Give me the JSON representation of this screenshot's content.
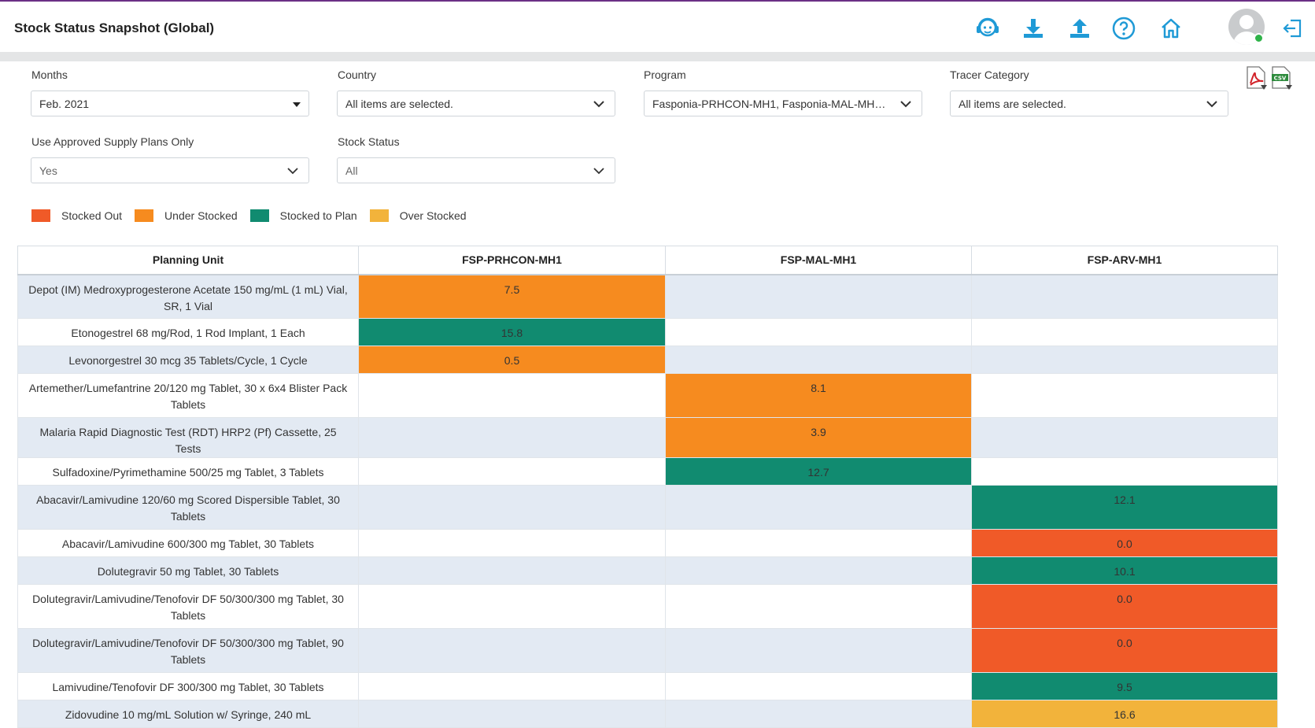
{
  "app": {
    "title": "Stock Status Snapshot (Global)"
  },
  "header_icons": [
    "support-icon",
    "download-icon",
    "upload-icon",
    "help-icon",
    "home-icon",
    "avatar",
    "logout-icon"
  ],
  "colors": {
    "stocked_out": "#f05a28",
    "under_stocked": "#f68b1f",
    "stocked_to_plan": "#118b70",
    "over_stocked": "#f2b33b",
    "header_accent": "#1f9ad6"
  },
  "filters": {
    "months": {
      "label": "Months",
      "value": "Feb. 2021"
    },
    "country": {
      "label": "Country",
      "value": "All items are selected."
    },
    "program": {
      "label": "Program",
      "value": "Fasponia-PRHCON-MH1, Fasponia-MAL-MH…"
    },
    "tracer_category": {
      "label": "Tracer Category",
      "value": "All items are selected."
    },
    "approved_only": {
      "label": "Use Approved Supply Plans Only",
      "value": "Yes"
    },
    "stock_status": {
      "label": "Stock Status",
      "value": "All"
    }
  },
  "exports": [
    "pdf-export-icon",
    "csv-export-icon"
  ],
  "legend": [
    {
      "label": "Stocked Out",
      "status": "stocked_out"
    },
    {
      "label": "Under Stocked",
      "status": "under_stocked"
    },
    {
      "label": "Stocked to Plan",
      "status": "stocked_to_plan"
    },
    {
      "label": "Over Stocked",
      "status": "over_stocked"
    }
  ],
  "table": {
    "columns": [
      "Planning Unit",
      "FSP-PRHCON-MH1",
      "FSP-MAL-MH1",
      "FSP-ARV-MH1"
    ],
    "rows": [
      {
        "name": "Depot (IM) Medroxyprogesterone Acetate 150 mg/mL (1 mL) Vial, SR, 1 Vial",
        "cells": [
          {
            "value": "7.5",
            "status": "under_stocked"
          },
          {
            "value": "",
            "status": ""
          },
          {
            "value": "",
            "status": ""
          }
        ]
      },
      {
        "name": "Etonogestrel 68 mg/Rod, 1 Rod Implant, 1 Each",
        "cells": [
          {
            "value": "15.8",
            "status": "stocked_to_plan"
          },
          {
            "value": "",
            "status": ""
          },
          {
            "value": "",
            "status": ""
          }
        ]
      },
      {
        "name": "Levonorgestrel 30 mcg 35 Tablets/Cycle, 1 Cycle",
        "cells": [
          {
            "value": "0.5",
            "status": "under_stocked"
          },
          {
            "value": "",
            "status": ""
          },
          {
            "value": "",
            "status": ""
          }
        ]
      },
      {
        "name": "Artemether/Lumefantrine 20/120 mg Tablet, 30 x 6x4 Blister Pack Tablets",
        "cells": [
          {
            "value": "",
            "status": ""
          },
          {
            "value": "8.1",
            "status": "under_stocked"
          },
          {
            "value": "",
            "status": ""
          }
        ]
      },
      {
        "name": "Malaria Rapid Diagnostic Test (RDT) HRP2 (Pf) Cassette, 25 Tests",
        "cells": [
          {
            "value": "",
            "status": ""
          },
          {
            "value": "3.9",
            "status": "under_stocked"
          },
          {
            "value": "",
            "status": ""
          }
        ]
      },
      {
        "name": "Sulfadoxine/Pyrimethamine 500/25 mg Tablet, 3 Tablets",
        "cells": [
          {
            "value": "",
            "status": ""
          },
          {
            "value": "12.7",
            "status": "stocked_to_plan"
          },
          {
            "value": "",
            "status": ""
          }
        ]
      },
      {
        "name": "Abacavir/Lamivudine 120/60 mg Scored Dispersible Tablet, 30 Tablets",
        "cells": [
          {
            "value": "",
            "status": ""
          },
          {
            "value": "",
            "status": ""
          },
          {
            "value": "12.1",
            "status": "stocked_to_plan"
          }
        ]
      },
      {
        "name": "Abacavir/Lamivudine 600/300 mg Tablet, 30 Tablets",
        "cells": [
          {
            "value": "",
            "status": ""
          },
          {
            "value": "",
            "status": ""
          },
          {
            "value": "0.0",
            "status": "stocked_out"
          }
        ]
      },
      {
        "name": "Dolutegravir 50 mg Tablet, 30 Tablets",
        "cells": [
          {
            "value": "",
            "status": ""
          },
          {
            "value": "",
            "status": ""
          },
          {
            "value": "10.1",
            "status": "stocked_to_plan"
          }
        ]
      },
      {
        "name": "Dolutegravir/Lamivudine/Tenofovir DF 50/300/300 mg Tablet, 30 Tablets",
        "cells": [
          {
            "value": "",
            "status": ""
          },
          {
            "value": "",
            "status": ""
          },
          {
            "value": "0.0",
            "status": "stocked_out"
          }
        ]
      },
      {
        "name": "Dolutegravir/Lamivudine/Tenofovir DF 50/300/300 mg Tablet, 90 Tablets",
        "cells": [
          {
            "value": "",
            "status": ""
          },
          {
            "value": "",
            "status": ""
          },
          {
            "value": "0.0",
            "status": "stocked_out"
          }
        ]
      },
      {
        "name": "Lamivudine/Tenofovir DF 300/300 mg Tablet, 30 Tablets",
        "cells": [
          {
            "value": "",
            "status": ""
          },
          {
            "value": "",
            "status": ""
          },
          {
            "value": "9.5",
            "status": "stocked_to_plan"
          }
        ]
      },
      {
        "name": "Zidovudine 10 mg/mL Solution w/ Syringe, 240 mL",
        "cells": [
          {
            "value": "",
            "status": ""
          },
          {
            "value": "",
            "status": ""
          },
          {
            "value": "16.6",
            "status": "over_stocked"
          }
        ]
      }
    ]
  }
}
